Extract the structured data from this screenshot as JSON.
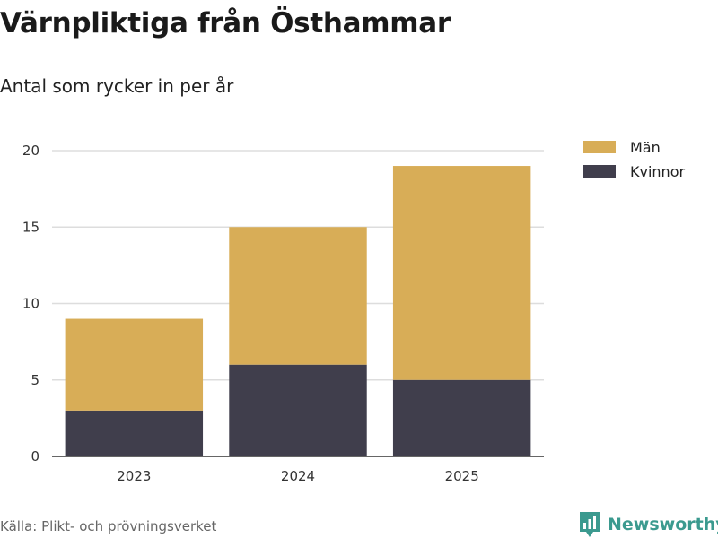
{
  "header": {
    "title": "Värnpliktiga från Östhammar",
    "subtitle": "Antal som rycker in per år"
  },
  "footer": {
    "source": "Källa: Plikt- och prövningsverket",
    "brand": "Newsworthy"
  },
  "colors": {
    "man": "#d8ad57",
    "kvinnor": "#403e4c",
    "grid": "#dddddd",
    "axis": "#333333",
    "brand": "#3b9a8f"
  },
  "chart_data": {
    "type": "bar",
    "stacked": true,
    "title": "Värnpliktiga från Östhammar",
    "subtitle": "Antal som rycker in per år",
    "categories": [
      "2023",
      "2024",
      "2025"
    ],
    "series": [
      {
        "name": "Kvinnor",
        "values": [
          3,
          6,
          5
        ]
      },
      {
        "name": "Män",
        "values": [
          6,
          9,
          14
        ]
      }
    ],
    "legend": [
      "Män",
      "Kvinnor"
    ],
    "legend_position": "right",
    "yticks": [
      0,
      5,
      10,
      15,
      20
    ],
    "ylim": [
      0,
      20
    ],
    "xlabel": "",
    "ylabel": "",
    "grid": true
  }
}
